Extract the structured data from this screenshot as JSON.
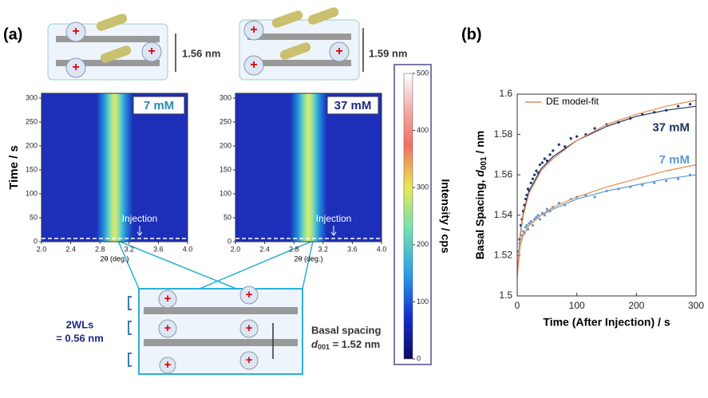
{
  "panel_labels": [
    "(a)",
    "(b)"
  ],
  "annotations": {
    "top_left_spacing": "1.56 nm",
    "top_right_spacing": "1.59 nm",
    "wl_line1": "2WLs",
    "wl_line2": "= 0.56 nm",
    "basal_line1": "Basal spacing",
    "basal_line2_parts": [
      "d",
      "001",
      " = 1.52 nm"
    ]
  },
  "chart_data": [
    {
      "type": "heatmap",
      "label": "7 mM",
      "annotation": "Injection",
      "xlabel": "2θ (deg.)",
      "ylabel": "Time / s",
      "xlim": [
        2.0,
        4.0
      ],
      "xticks": [
        {
          "value": 2.0,
          "label": "2.0"
        },
        2.4,
        2.8,
        3.2,
        3.6,
        {
          "value": 4.0,
          "label": "4.0"
        }
      ],
      "ylim": [
        0,
        310
      ],
      "yticks": [
        0,
        50,
        100,
        150,
        200,
        250,
        300
      ],
      "peak_center": 3.0,
      "peak_width": 0.5
    },
    {
      "type": "heatmap",
      "label": "37 mM",
      "annotation": "Injection",
      "xlabel": "2θ (deg.)",
      "xlim": [
        2.0,
        4.0
      ],
      "xticks": [
        {
          "value": 2.0,
          "label": "2.0"
        },
        2.4,
        2.8,
        3.2,
        3.6,
        {
          "value": 4.0,
          "label": "4.0"
        }
      ],
      "ylim": [
        0,
        310
      ],
      "yticks": [
        0,
        50,
        100,
        150,
        200,
        250,
        300
      ],
      "peak_center": 3.0,
      "peak_width": 0.5
    },
    {
      "type": "colorbar",
      "label": "Intensity / cps",
      "ylim": [
        0,
        500
      ],
      "yticks": [
        0,
        100,
        200,
        300,
        400,
        500
      ]
    },
    {
      "type": "scatter",
      "xlabel": "Time (After Injection) / s",
      "ylabel_parts": [
        "Basal Spacing, ",
        "d",
        "001",
        " / nm"
      ],
      "xlim": [
        0,
        300
      ],
      "xticks": [
        0,
        100,
        200,
        300
      ],
      "ylim": [
        1.5,
        1.6
      ],
      "yticks": [
        1.5,
        1.52,
        1.54,
        1.56,
        1.58,
        1.6
      ],
      "fit_x": [
        0,
        5,
        10,
        20,
        40,
        60,
        100,
        150,
        200,
        250,
        300
      ],
      "series": [
        {
          "name": "37 mM",
          "color": "#1c3468",
          "x": [
            2,
            4,
            6,
            8,
            10,
            12,
            14,
            16,
            18,
            20,
            23,
            26,
            29,
            32,
            35,
            38,
            42,
            46,
            50,
            55,
            60,
            70,
            80,
            90,
            100,
            115,
            130,
            150,
            170,
            190,
            210,
            230,
            250,
            270,
            290
          ],
          "values": [
            1.522,
            1.528,
            1.535,
            1.538,
            1.542,
            1.545,
            1.548,
            1.55,
            1.553,
            1.552,
            1.556,
            1.558,
            1.56,
            1.562,
            1.561,
            1.565,
            1.566,
            1.568,
            1.567,
            1.57,
            1.572,
            1.575,
            1.574,
            1.578,
            1.579,
            1.58,
            1.583,
            1.585,
            1.586,
            1.588,
            1.59,
            1.591,
            1.592,
            1.594,
            1.595
          ],
          "fit_values": [
            1.51,
            1.53,
            1.541,
            1.552,
            1.563,
            1.569,
            1.577,
            1.584,
            1.589,
            1.592,
            1.594
          ]
        },
        {
          "name": "7 mM",
          "color": "#5b9bd5",
          "x": [
            2,
            4,
            6,
            8,
            10,
            12,
            14,
            16,
            18,
            20,
            23,
            26,
            29,
            32,
            35,
            38,
            42,
            46,
            50,
            55,
            60,
            70,
            80,
            90,
            100,
            115,
            130,
            150,
            170,
            190,
            210,
            230,
            250,
            270,
            290
          ],
          "values": [
            1.522,
            1.526,
            1.528,
            1.53,
            1.532,
            1.531,
            1.534,
            1.535,
            1.533,
            1.536,
            1.537,
            1.535,
            1.538,
            1.539,
            1.54,
            1.538,
            1.541,
            1.54,
            1.543,
            1.542,
            1.544,
            1.546,
            1.545,
            1.548,
            1.549,
            1.55,
            1.549,
            1.552,
            1.553,
            1.554,
            1.555,
            1.556,
            1.557,
            1.558,
            1.56
          ],
          "fit_values": [
            1.51,
            1.525,
            1.53,
            1.535,
            1.54,
            1.543,
            1.548,
            1.552,
            1.555,
            1.558,
            1.56
          ]
        }
      ],
      "model_fit": {
        "name": "DE model-fit",
        "color": "#e8894a",
        "curves": [
          [
            1.51,
            1.529,
            1.54,
            1.551,
            1.562,
            1.568,
            1.577,
            1.585,
            1.59,
            1.594,
            1.597
          ],
          [
            1.51,
            1.525,
            1.53,
            1.535,
            1.54,
            1.544,
            1.549,
            1.554,
            1.558,
            1.562,
            1.565
          ]
        ]
      }
    }
  ]
}
